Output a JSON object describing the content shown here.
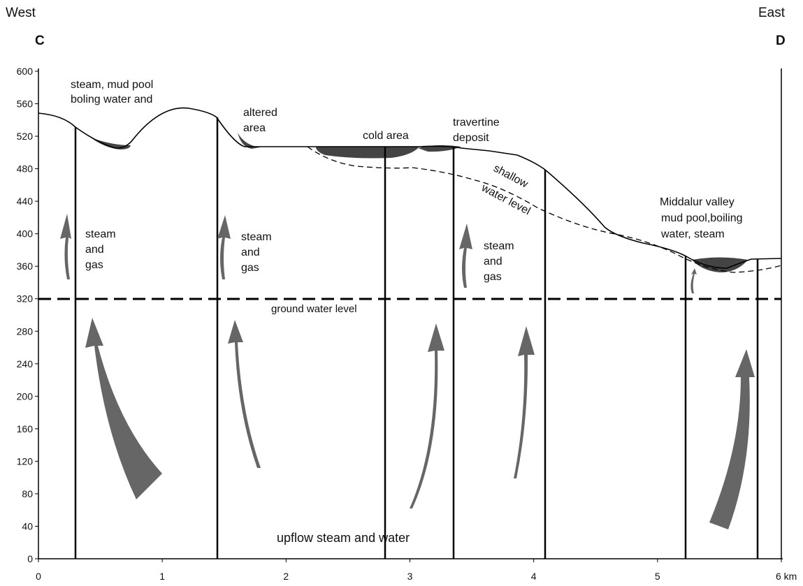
{
  "header": {
    "west": "West",
    "east": "East",
    "left_point": "C",
    "right_point": "D"
  },
  "axes": {
    "xlim": [
      0,
      6
    ],
    "xticks": [
      0,
      1,
      2,
      3,
      4,
      5,
      {
        "value": 6,
        "label": "6 km"
      }
    ],
    "ylim": [
      0,
      600
    ],
    "yticks": [
      0,
      40,
      80,
      120,
      160,
      200,
      240,
      280,
      320,
      360,
      400,
      440,
      480,
      520,
      560,
      600
    ]
  },
  "labels": {
    "steam_mud_pool": [
      "steam, mud pool",
      "boling water and"
    ],
    "altered_area": [
      "altered",
      "area"
    ],
    "cold_area": "cold area",
    "travertine": [
      "travertine",
      "deposit"
    ],
    "shallow": [
      "shallow",
      "water level"
    ],
    "middalur": [
      "Middalur valley",
      "mud pool,boiling",
      "water, steam"
    ],
    "steam_gas_1": [
      "steam",
      "and",
      "gas"
    ],
    "steam_gas_2": [
      "steam",
      "and",
      "gas"
    ],
    "steam_gas_3": [
      "steam",
      "and",
      "gas"
    ],
    "ground_water": "ground water level",
    "upflow": "upflow steam and water"
  }
}
